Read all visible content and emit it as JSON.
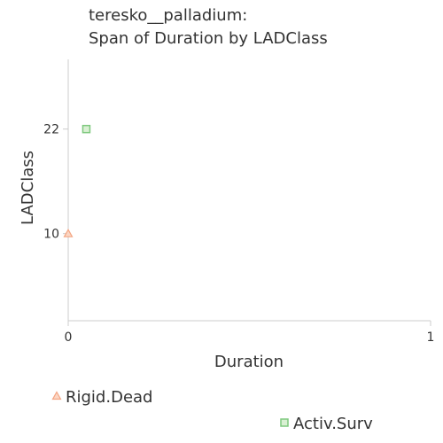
{
  "chart_data": {
    "type": "scatter",
    "title_lines": [
      "teresko__palladium:",
      "Span of Duration by LADClass"
    ],
    "xlabel": "Duration",
    "ylabel": "LADClass",
    "xlim": [
      0,
      1
    ],
    "ylim": [
      0,
      30
    ],
    "x_ticks": [
      0,
      1
    ],
    "y_ticks": [
      10,
      22
    ],
    "grid": false,
    "series": [
      {
        "name": "Rigid.Dead",
        "marker": "triangle",
        "color": "#f4a582",
        "fill": "#fbd6c4",
        "points": [
          {
            "x": 0.0,
            "y": 10
          }
        ]
      },
      {
        "name": "Activ.Surv",
        "marker": "square",
        "color": "#7fc97f",
        "fill": "#d9f0d3",
        "points": [
          {
            "x": 0.05,
            "y": 22
          }
        ]
      }
    ],
    "legend_placement": "bottom"
  }
}
